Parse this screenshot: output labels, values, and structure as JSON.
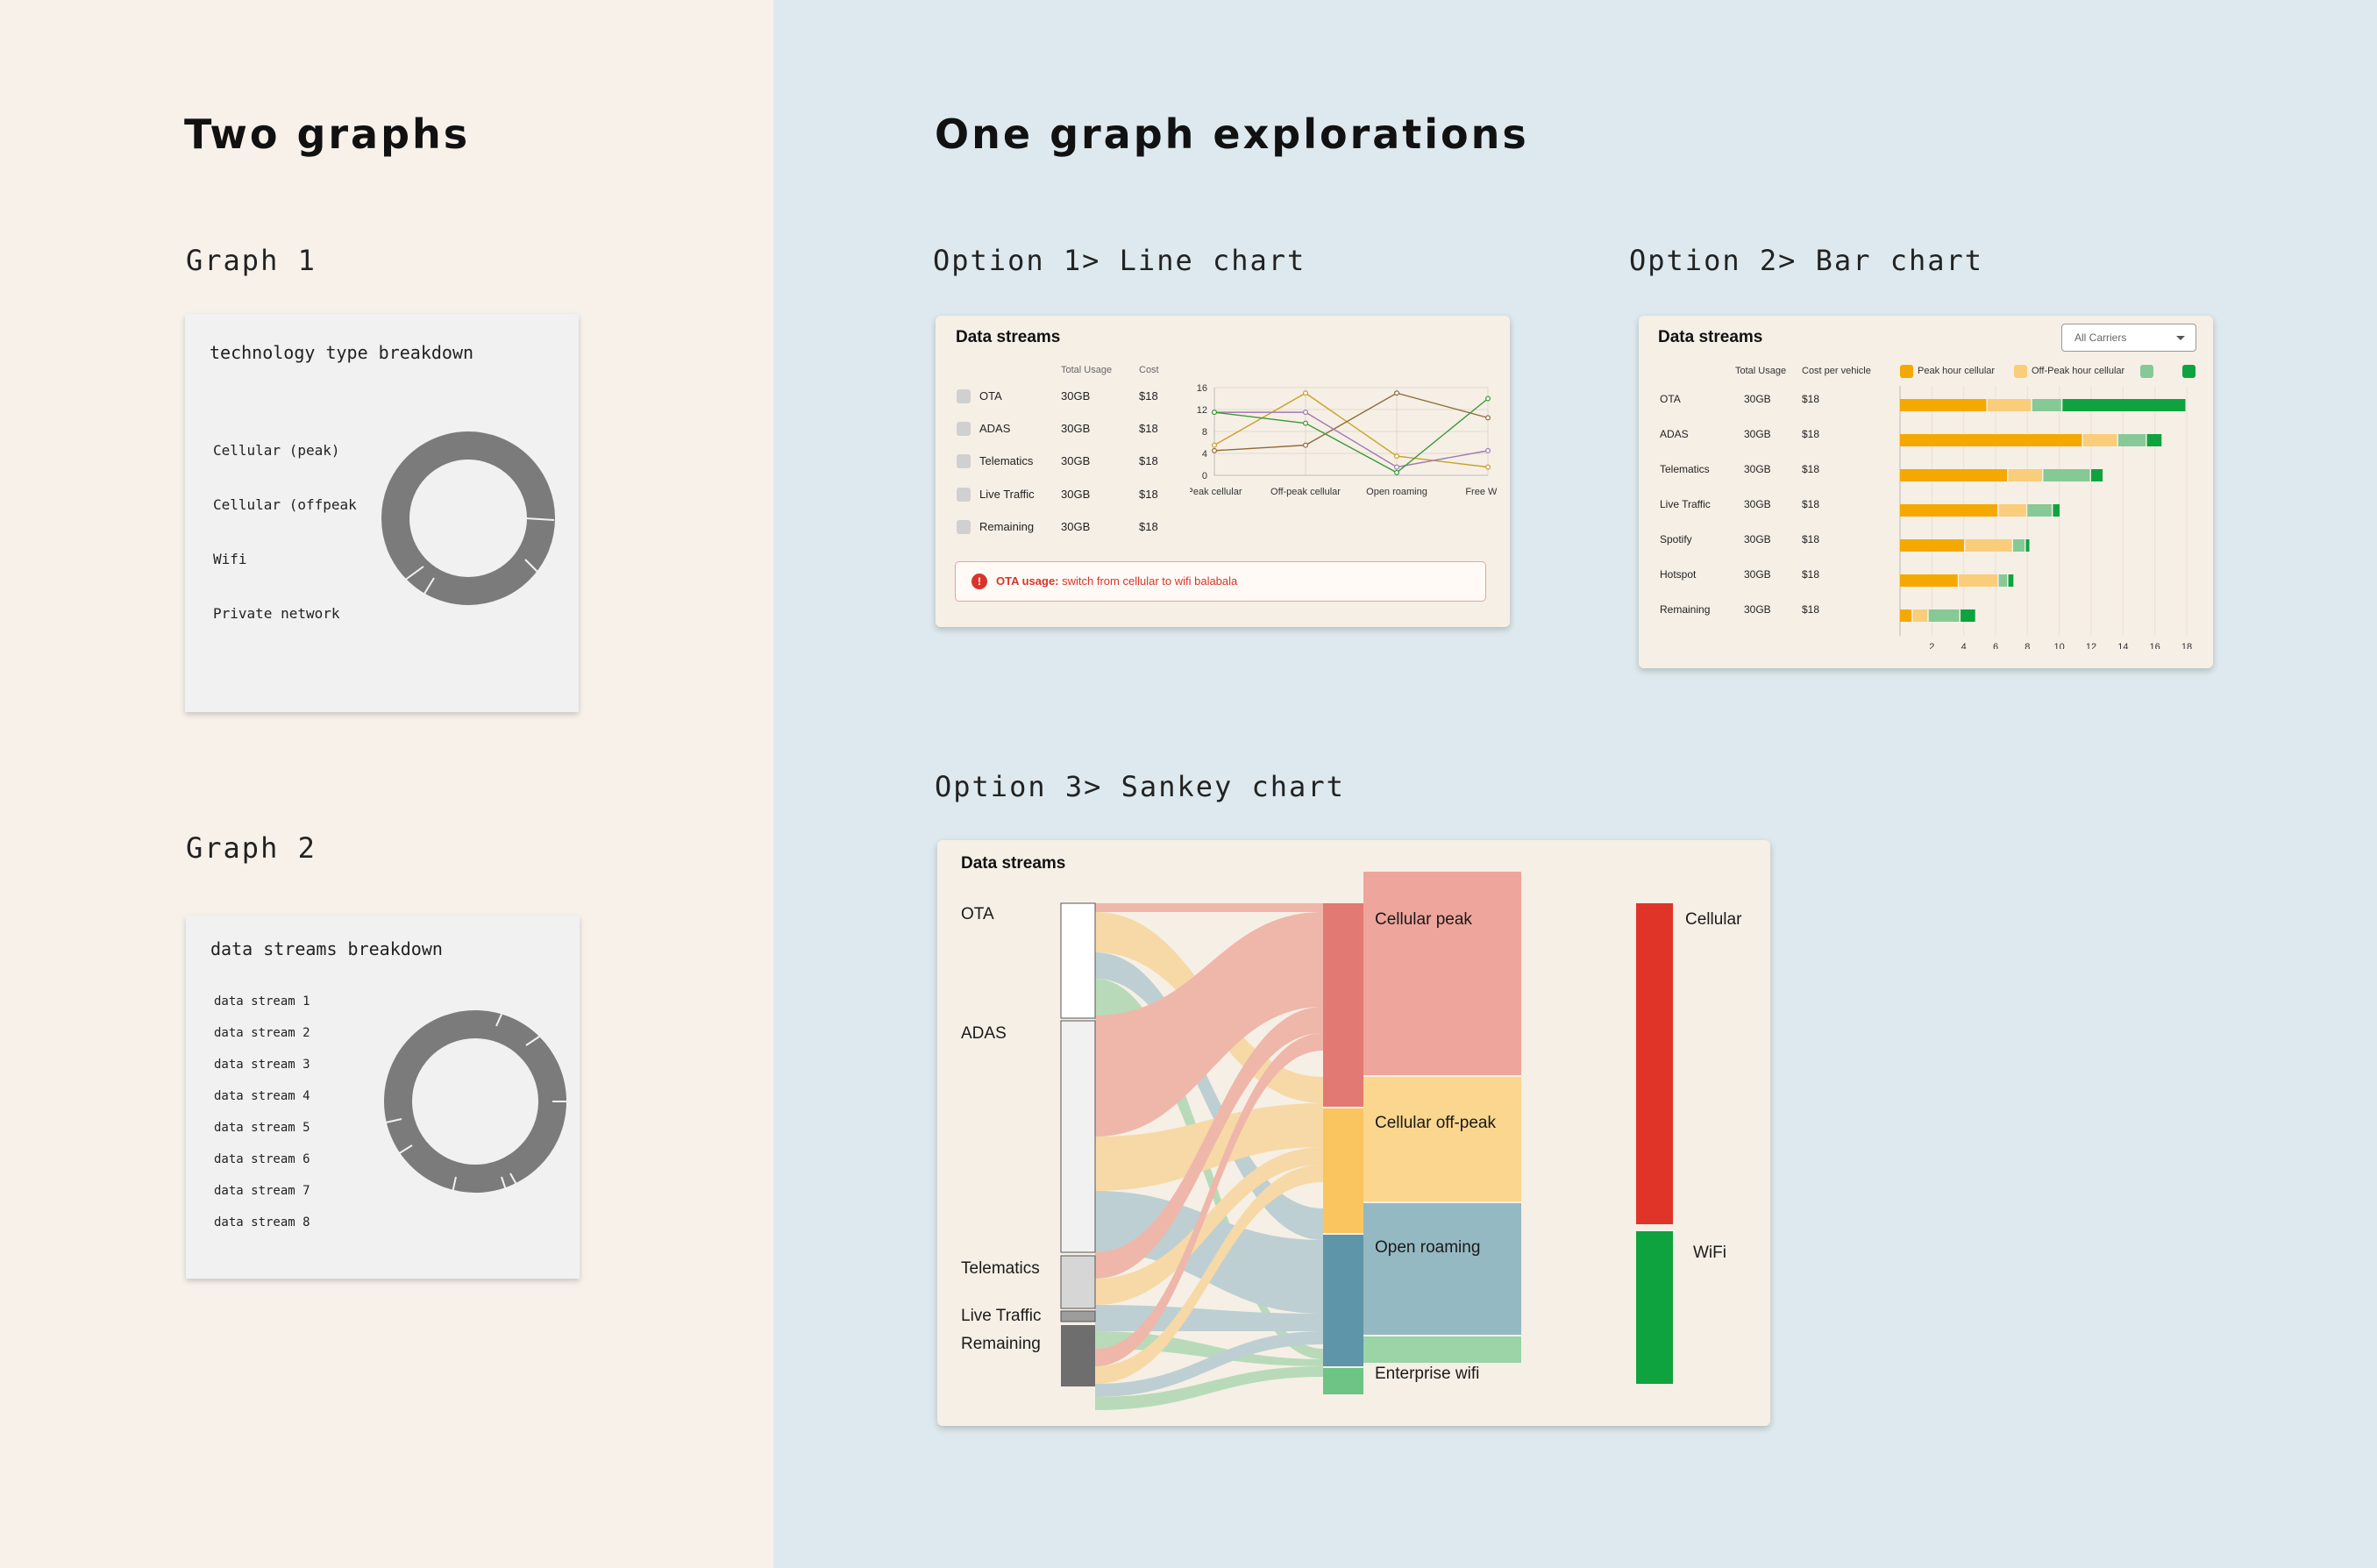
{
  "left": {
    "title": "Two graphs",
    "graph1": {
      "heading": "Graph 1",
      "card_title": "technology type breakdown",
      "labels": [
        "Cellular (peak)",
        "Cellular (offpeak",
        "Wifi",
        "Private network"
      ]
    },
    "graph2": {
      "heading": "Graph 2",
      "card_title": "data streams breakdown",
      "labels": [
        "data stream 1",
        "data stream 2",
        "data stream 3",
        "data stream 4",
        "data stream 5",
        "data stream 6",
        "data stream 7",
        "data stream 8"
      ]
    }
  },
  "right": {
    "title": "One graph explorations",
    "option1": {
      "heading": "Option 1> Line chart",
      "card_title": "Data streams",
      "col_usage": "Total Usage",
      "col_cost": "Cost",
      "rows": [
        {
          "name": "OTA",
          "usage": "30GB",
          "cost": "$18"
        },
        {
          "name": "ADAS",
          "usage": "30GB",
          "cost": "$18"
        },
        {
          "name": "Telematics",
          "usage": "30GB",
          "cost": "$18"
        },
        {
          "name": "Live Traffic",
          "usage": "30GB",
          "cost": "$18"
        },
        {
          "name": "Remaining",
          "usage": "30GB",
          "cost": "$18"
        }
      ],
      "alert_bold": "OTA usage:",
      "alert_text": " switch from cellular to wifi balabala"
    },
    "option2": {
      "heading": "Option 2> Bar chart",
      "card_title": "Data streams",
      "dropdown": "All Carriers",
      "col_usage": "Total Usage",
      "col_cost": "Cost per vehicle",
      "legend": [
        "Peak hour cellular",
        "Off-Peak hour cellular"
      ],
      "rows": [
        {
          "name": "OTA",
          "usage": "30GB",
          "cost": "$18"
        },
        {
          "name": "ADAS",
          "usage": "30GB",
          "cost": "$18"
        },
        {
          "name": "Telematics",
          "usage": "30GB",
          "cost": "$18"
        },
        {
          "name": "Live Traffic",
          "usage": "30GB",
          "cost": "$18"
        },
        {
          "name": "Spotify",
          "usage": "30GB",
          "cost": "$18"
        },
        {
          "name": "Hotspot",
          "usage": "30GB",
          "cost": "$18"
        },
        {
          "name": "Remaining",
          "usage": "30GB",
          "cost": "$18"
        }
      ]
    },
    "option3": {
      "heading": "Option 3> Sankey chart",
      "card_title": "Data streams",
      "sources": [
        "OTA",
        "ADAS",
        "Telematics",
        "Live Traffic",
        "Remaining"
      ],
      "middle": [
        "Cellular peak",
        "Cellular off-peak",
        "Open roaming",
        "Enterprise wifi"
      ],
      "targets": [
        "Cellular",
        "WiFi"
      ]
    }
  },
  "colors": {
    "peak": "#f5a800",
    "offpeak": "#f9cd7a",
    "wifi_light": "#86c996",
    "wifi_dark": "#0fa33f",
    "cellular_red": "#e03428",
    "alert_red": "#d9342b"
  },
  "chart_data": [
    {
      "type": "line",
      "categories": [
        "Peak cellular",
        "Off-peak cellular",
        "Open roaming",
        "Free Wi-Fi"
      ],
      "ylim": [
        0,
        16
      ],
      "yticks": [
        0,
        4,
        8,
        12,
        16
      ],
      "series": [
        {
          "color": "#c9a227",
          "values": [
            5.5,
            15,
            3.5,
            1.5
          ]
        },
        {
          "color": "#8f6c3a",
          "values": [
            4.5,
            5.5,
            15,
            10.5
          ]
        },
        {
          "color": "#a07ab0",
          "values": [
            11.5,
            11.5,
            1.5,
            4.5
          ]
        },
        {
          "color": "#3a9a3a",
          "values": [
            11.5,
            9.5,
            0.5,
            14
          ]
        }
      ]
    },
    {
      "type": "bar",
      "stacked": true,
      "categories": [
        "OTA",
        "ADAS",
        "Telematics",
        "Live Traffic",
        "Spotify",
        "Hotspot",
        "Remaining"
      ],
      "xlim": [
        0,
        18
      ],
      "xticks": [
        2,
        4,
        6,
        8,
        10,
        12,
        14,
        16,
        18
      ],
      "series": [
        {
          "name": "Peak hour cellular",
          "color": "#f5a800",
          "values": [
            5.5,
            11.5,
            6.8,
            6.2,
            4.1,
            3.7,
            0.8
          ]
        },
        {
          "name": "Off-Peak hour cellular",
          "color": "#f9cd7a",
          "values": [
            2.8,
            2.2,
            2.2,
            1.8,
            3.0,
            2.5,
            1.0
          ]
        },
        {
          "color": "#86c996",
          "values": [
            1.9,
            1.8,
            3.0,
            1.6,
            0.8,
            0.6,
            2.0
          ]
        },
        {
          "color": "#0fa33f",
          "values": [
            7.8,
            1.0,
            0.8,
            0.5,
            0.3,
            0.4,
            1.0
          ]
        }
      ]
    }
  ]
}
